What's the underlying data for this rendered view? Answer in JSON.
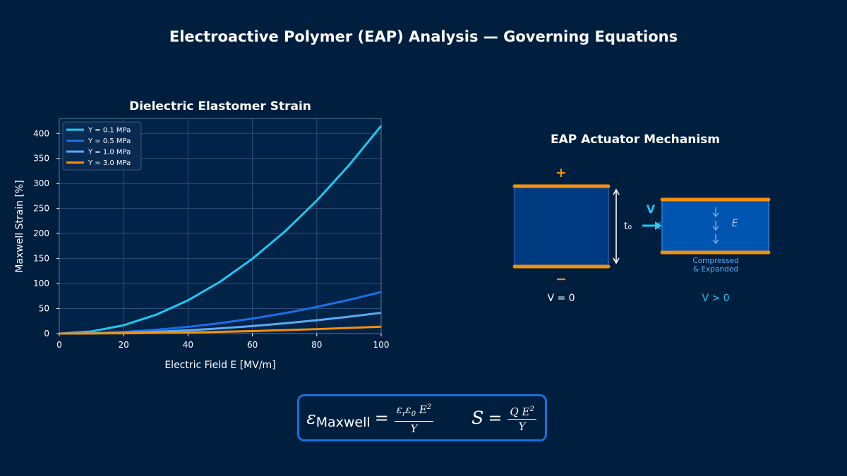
{
  "page": {
    "title": "Electroactive Polymer (EAP) Analysis — Governing Equations"
  },
  "chart_data": {
    "type": "line",
    "title": "Dielectric Elastomer Strain",
    "xlabel": "Electric Field E  [MV/m]",
    "ylabel": "Maxwell Strain  [%]",
    "xlim": [
      0,
      100
    ],
    "ylim": [
      0,
      430
    ],
    "xticks": [
      0,
      20,
      40,
      60,
      80,
      100
    ],
    "yticks": [
      0,
      50,
      100,
      150,
      200,
      250,
      300,
      350,
      400
    ],
    "grid": true,
    "legend_position": "top-left",
    "x": [
      0,
      10,
      20,
      30,
      40,
      50,
      60,
      70,
      80,
      90,
      100
    ],
    "series": [
      {
        "name": "Y = 0.1 MPa",
        "color": "#1ec8f0",
        "values": [
          0,
          4.2,
          16.6,
          37.4,
          66.4,
          103.8,
          149.5,
          203.5,
          265.8,
          336.4,
          415.3
        ]
      },
      {
        "name": "Y = 0.5 MPa",
        "color": "#1a6fe8",
        "values": [
          0,
          0.8,
          3.3,
          7.5,
          13.3,
          20.8,
          29.9,
          40.7,
          53.2,
          67.3,
          83.1
        ]
      },
      {
        "name": "Y = 1.0 MPa",
        "color": "#5aabf5",
        "values": [
          0,
          0.4,
          1.7,
          3.7,
          6.6,
          10.4,
          15.0,
          20.4,
          26.6,
          33.6,
          41.5
        ]
      },
      {
        "name": "Y = 3.0 MPa",
        "color": "#f5900f",
        "values": [
          0,
          0.1,
          0.6,
          1.2,
          2.2,
          3.5,
          5.0,
          6.8,
          8.9,
          11.2,
          13.8
        ]
      }
    ]
  },
  "diagram": {
    "title": "EAP Actuator Mechanism",
    "plus_label": "+",
    "minus_label": "−",
    "thickness_label": "t₀",
    "voltage_label": "V",
    "field_label": "E",
    "compressed_label_line1": "Compressed",
    "compressed_label_line2": "& Expanded",
    "state_off_label": "V = 0",
    "state_on_label": "V > 0",
    "colors": {
      "electrode": "#f5900f",
      "slab_off": "#003a80",
      "slab_on": "#0055b0",
      "accent": "#1ec8f0"
    }
  },
  "equations": {
    "maxwell_symbol": "ε",
    "maxwell_subscript": "Maxwell",
    "maxwell_numerator": "εrε0 E²",
    "maxwell_denominator": "Y",
    "s_symbol": "S",
    "s_numerator": "Q E²",
    "s_denominator": "Y"
  }
}
